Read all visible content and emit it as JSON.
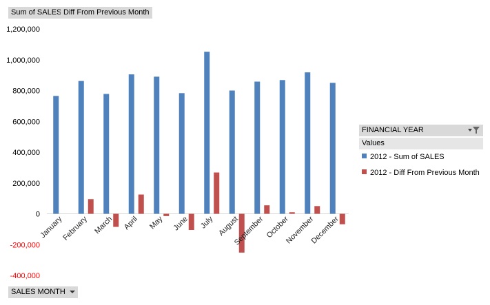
{
  "field_buttons": {
    "sum_of_sales": "Sum of SALES",
    "diff_prev_month": "Diff From Previous Month",
    "sales_month": "SALES MONTH"
  },
  "legend": {
    "header": "FINANCIAL YEAR",
    "values_label": "Values",
    "items": [
      {
        "label": "2012 - Sum of SALES",
        "color": "#4f81bd"
      },
      {
        "label": "2012 - Diff From Previous Month",
        "color": "#c0504d"
      }
    ]
  },
  "chart_data": {
    "type": "bar",
    "categories": [
      "January",
      "February",
      "March",
      "April",
      "May",
      "June",
      "July",
      "August",
      "September",
      "October",
      "November",
      "December"
    ],
    "series": [
      {
        "name": "2012 - Sum of SALES",
        "color": "#4f81bd",
        "values": [
          765000,
          862000,
          778000,
          905000,
          890000,
          783000,
          1052000,
          800000,
          858000,
          868000,
          918000,
          850000
        ]
      },
      {
        "name": "2012 - Diff From Previous Month",
        "color": "#c0504d",
        "values": [
          0,
          95000,
          -85000,
          125000,
          -15000,
          -105000,
          268000,
          -252000,
          55000,
          10000,
          50000,
          -68000
        ]
      }
    ],
    "yticks": [
      1200000,
      1000000,
      800000,
      600000,
      400000,
      200000,
      0,
      -200000,
      -400000
    ],
    "ytick_labels": [
      "1,200,000",
      "1,000,000",
      "800,000",
      "600,000",
      "400,000",
      "200,000",
      "0",
      "-200,000",
      "-400,000"
    ],
    "ylim": [
      -400000,
      1200000
    ],
    "negative_label_color": "#ff0000",
    "grid": false,
    "legend_position": "right"
  }
}
